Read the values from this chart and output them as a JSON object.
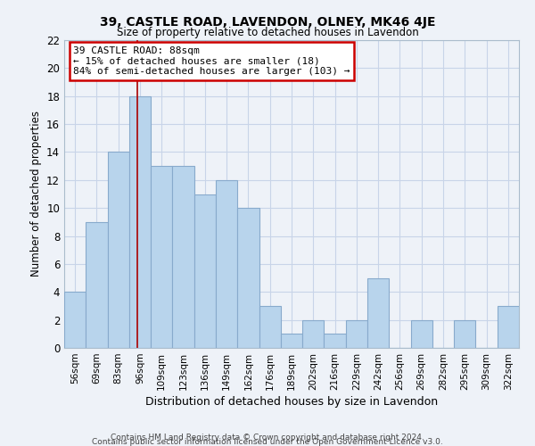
{
  "title": "39, CASTLE ROAD, LAVENDON, OLNEY, MK46 4JE",
  "subtitle": "Size of property relative to detached houses in Lavendon",
  "xlabel": "Distribution of detached houses by size in Lavendon",
  "ylabel": "Number of detached properties",
  "footer_line1": "Contains HM Land Registry data © Crown copyright and database right 2024.",
  "footer_line2": "Contains public sector information licensed under the Open Government Licence v3.0.",
  "bin_labels": [
    "56sqm",
    "69sqm",
    "83sqm",
    "96sqm",
    "109sqm",
    "123sqm",
    "136sqm",
    "149sqm",
    "162sqm",
    "176sqm",
    "189sqm",
    "202sqm",
    "216sqm",
    "229sqm",
    "242sqm",
    "256sqm",
    "269sqm",
    "282sqm",
    "295sqm",
    "309sqm",
    "322sqm"
  ],
  "bar_values": [
    4,
    9,
    14,
    18,
    13,
    13,
    11,
    12,
    10,
    3,
    1,
    2,
    1,
    2,
    5,
    0,
    2,
    0,
    2,
    0,
    3
  ],
  "bar_color": "#b8d4ec",
  "bar_edge_color": "#88aacc",
  "subject_line_color": "#aa0000",
  "annotation_title": "39 CASTLE ROAD: 88sqm",
  "annotation_line1": "← 15% of detached houses are smaller (18)",
  "annotation_line2": "84% of semi-detached houses are larger (103) →",
  "annotation_box_color": "#ffffff",
  "annotation_box_edge_color": "#cc0000",
  "ylim": [
    0,
    22
  ],
  "yticks": [
    0,
    2,
    4,
    6,
    8,
    10,
    12,
    14,
    16,
    18,
    20,
    22
  ],
  "grid_color": "#c8d4e8",
  "background_color": "#eef2f8"
}
